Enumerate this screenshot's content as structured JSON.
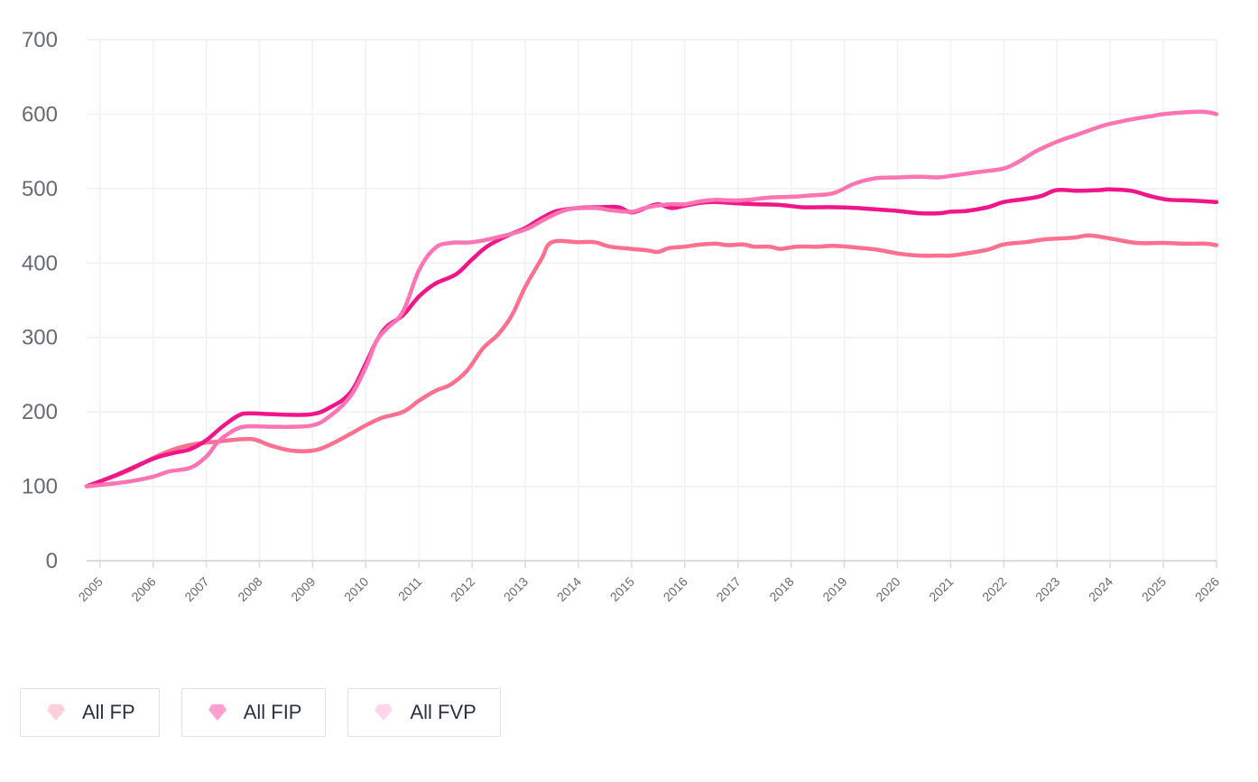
{
  "chart_data": {
    "type": "line",
    "title": "",
    "xlabel": "",
    "ylabel": "",
    "x_ticks": [
      "2005",
      "2006",
      "2007",
      "2008",
      "2009",
      "2010",
      "2011",
      "2012",
      "2013",
      "2014",
      "2015",
      "2016",
      "2017",
      "2018",
      "2019",
      "2020",
      "2021",
      "2022",
      "2023",
      "2024",
      "2025",
      "2026"
    ],
    "y_ticks": [
      0,
      100,
      200,
      300,
      400,
      500,
      600,
      700
    ],
    "xlim": [
      2004.75,
      2026.0
    ],
    "ylim": [
      0,
      700
    ],
    "grid": true,
    "legend_position": "bottom-left",
    "series": [
      {
        "name": "All FP",
        "color": "#ff6f8f",
        "icon_color": "#ffd0da",
        "points": [
          [
            2004.75,
            100
          ],
          [
            2005.5,
            120
          ],
          [
            2006,
            138
          ],
          [
            2006.4,
            150
          ],
          [
            2006.8,
            157
          ],
          [
            2007.2,
            160
          ],
          [
            2007.6,
            163
          ],
          [
            2007.9,
            163
          ],
          [
            2008.2,
            155
          ],
          [
            2008.6,
            148
          ],
          [
            2009,
            148
          ],
          [
            2009.3,
            155
          ],
          [
            2009.7,
            170
          ],
          [
            2010,
            182
          ],
          [
            2010.3,
            192
          ],
          [
            2010.7,
            200
          ],
          [
            2011,
            215
          ],
          [
            2011.3,
            228
          ],
          [
            2011.6,
            237
          ],
          [
            2011.9,
            255
          ],
          [
            2012.2,
            285
          ],
          [
            2012.5,
            305
          ],
          [
            2012.75,
            330
          ],
          [
            2013,
            368
          ],
          [
            2013.3,
            405
          ],
          [
            2013.5,
            428
          ],
          [
            2014,
            428
          ],
          [
            2014.3,
            428
          ],
          [
            2014.6,
            422
          ],
          [
            2015,
            419
          ],
          [
            2015.3,
            417
          ],
          [
            2015.5,
            415
          ],
          [
            2015.7,
            420
          ],
          [
            2016,
            422
          ],
          [
            2016.3,
            425
          ],
          [
            2016.6,
            426
          ],
          [
            2016.8,
            424
          ],
          [
            2017.1,
            425
          ],
          [
            2017.3,
            422
          ],
          [
            2017.6,
            422
          ],
          [
            2017.8,
            419
          ],
          [
            2018.1,
            422
          ],
          [
            2018.5,
            422
          ],
          [
            2018.8,
            423
          ],
          [
            2019.2,
            421
          ],
          [
            2019.6,
            418
          ],
          [
            2020,
            413
          ],
          [
            2020.4,
            410
          ],
          [
            2020.8,
            410
          ],
          [
            2021,
            410
          ],
          [
            2021.3,
            413
          ],
          [
            2021.7,
            418
          ],
          [
            2022,
            425
          ],
          [
            2022.4,
            428
          ],
          [
            2022.8,
            432
          ],
          [
            2023.3,
            434
          ],
          [
            2023.6,
            437
          ],
          [
            2024,
            433
          ],
          [
            2024.5,
            427
          ],
          [
            2025,
            427
          ],
          [
            2025.4,
            426
          ],
          [
            2025.8,
            426
          ],
          [
            2026,
            424
          ]
        ]
      },
      {
        "name": "All FIP",
        "color": "#f0168a",
        "icon_color": "#ff9fd0",
        "points": [
          [
            2004.75,
            100
          ],
          [
            2005.3,
            115
          ],
          [
            2006,
            137
          ],
          [
            2006.4,
            145
          ],
          [
            2006.7,
            150
          ],
          [
            2007,
            162
          ],
          [
            2007.3,
            180
          ],
          [
            2007.6,
            195
          ],
          [
            2007.8,
            198
          ],
          [
            2008.2,
            197
          ],
          [
            2008.6,
            196
          ],
          [
            2009,
            197
          ],
          [
            2009.3,
            205
          ],
          [
            2009.7,
            225
          ],
          [
            2010,
            265
          ],
          [
            2010.2,
            295
          ],
          [
            2010.4,
            315
          ],
          [
            2010.7,
            330
          ],
          [
            2011,
            355
          ],
          [
            2011.3,
            372
          ],
          [
            2011.7,
            385
          ],
          [
            2012,
            405
          ],
          [
            2012.3,
            423
          ],
          [
            2012.7,
            438
          ],
          [
            2013,
            447
          ],
          [
            2013.3,
            460
          ],
          [
            2013.6,
            470
          ],
          [
            2014,
            474
          ],
          [
            2014.4,
            475
          ],
          [
            2014.75,
            475
          ],
          [
            2015,
            468
          ],
          [
            2015.3,
            475
          ],
          [
            2015.5,
            479
          ],
          [
            2015.75,
            474
          ],
          [
            2016,
            477
          ],
          [
            2016.3,
            481
          ],
          [
            2016.6,
            482
          ],
          [
            2017,
            480
          ],
          [
            2017.4,
            479
          ],
          [
            2017.8,
            478
          ],
          [
            2018.2,
            475
          ],
          [
            2018.5,
            475
          ],
          [
            2018.8,
            475
          ],
          [
            2019.2,
            474
          ],
          [
            2019.6,
            472
          ],
          [
            2020,
            470
          ],
          [
            2020.4,
            467
          ],
          [
            2020.8,
            467
          ],
          [
            2021,
            469
          ],
          [
            2021.3,
            470
          ],
          [
            2021.7,
            475
          ],
          [
            2022,
            482
          ],
          [
            2022.4,
            486
          ],
          [
            2022.7,
            490
          ],
          [
            2023,
            498
          ],
          [
            2023.4,
            497
          ],
          [
            2023.8,
            498
          ],
          [
            2024,
            499
          ],
          [
            2024.4,
            497
          ],
          [
            2024.75,
            490
          ],
          [
            2025.1,
            485
          ],
          [
            2025.5,
            484
          ],
          [
            2026,
            482
          ]
        ]
      },
      {
        "name": "All FVP",
        "color": "#ff74b2",
        "icon_color": "#ffd6ec",
        "points": [
          [
            2004.75,
            100
          ],
          [
            2005.5,
            106
          ],
          [
            2006,
            113
          ],
          [
            2006.3,
            120
          ],
          [
            2006.7,
            125
          ],
          [
            2007,
            140
          ],
          [
            2007.2,
            158
          ],
          [
            2007.4,
            170
          ],
          [
            2007.7,
            180
          ],
          [
            2008.2,
            180
          ],
          [
            2008.6,
            180
          ],
          [
            2009,
            182
          ],
          [
            2009.3,
            193
          ],
          [
            2009.7,
            220
          ],
          [
            2010,
            260
          ],
          [
            2010.2,
            295
          ],
          [
            2010.4,
            312
          ],
          [
            2010.7,
            335
          ],
          [
            2011,
            390
          ],
          [
            2011.3,
            420
          ],
          [
            2011.6,
            427
          ],
          [
            2012,
            428
          ],
          [
            2012.5,
            435
          ],
          [
            2013,
            445
          ],
          [
            2013.4,
            460
          ],
          [
            2013.8,
            472
          ],
          [
            2014.3,
            474
          ],
          [
            2014.6,
            471
          ],
          [
            2015,
            469
          ],
          [
            2015.3,
            475
          ],
          [
            2015.7,
            479
          ],
          [
            2016,
            479
          ],
          [
            2016.3,
            483
          ],
          [
            2016.6,
            485
          ],
          [
            2016.9,
            484
          ],
          [
            2017.2,
            485
          ],
          [
            2017.6,
            488
          ],
          [
            2018,
            489
          ],
          [
            2018.4,
            491
          ],
          [
            2018.8,
            494
          ],
          [
            2019.2,
            507
          ],
          [
            2019.6,
            514
          ],
          [
            2020,
            515
          ],
          [
            2020.4,
            516
          ],
          [
            2020.75,
            515
          ],
          [
            2021,
            517
          ],
          [
            2021.3,
            520
          ],
          [
            2021.6,
            523
          ],
          [
            2022,
            527
          ],
          [
            2022.3,
            537
          ],
          [
            2022.6,
            550
          ],
          [
            2023,
            563
          ],
          [
            2023.4,
            573
          ],
          [
            2023.8,
            583
          ],
          [
            2024,
            587
          ],
          [
            2024.4,
            593
          ],
          [
            2024.75,
            597
          ],
          [
            2025,
            600
          ],
          [
            2025.5,
            603
          ],
          [
            2025.8,
            603
          ],
          [
            2026,
            600
          ]
        ]
      }
    ]
  }
}
